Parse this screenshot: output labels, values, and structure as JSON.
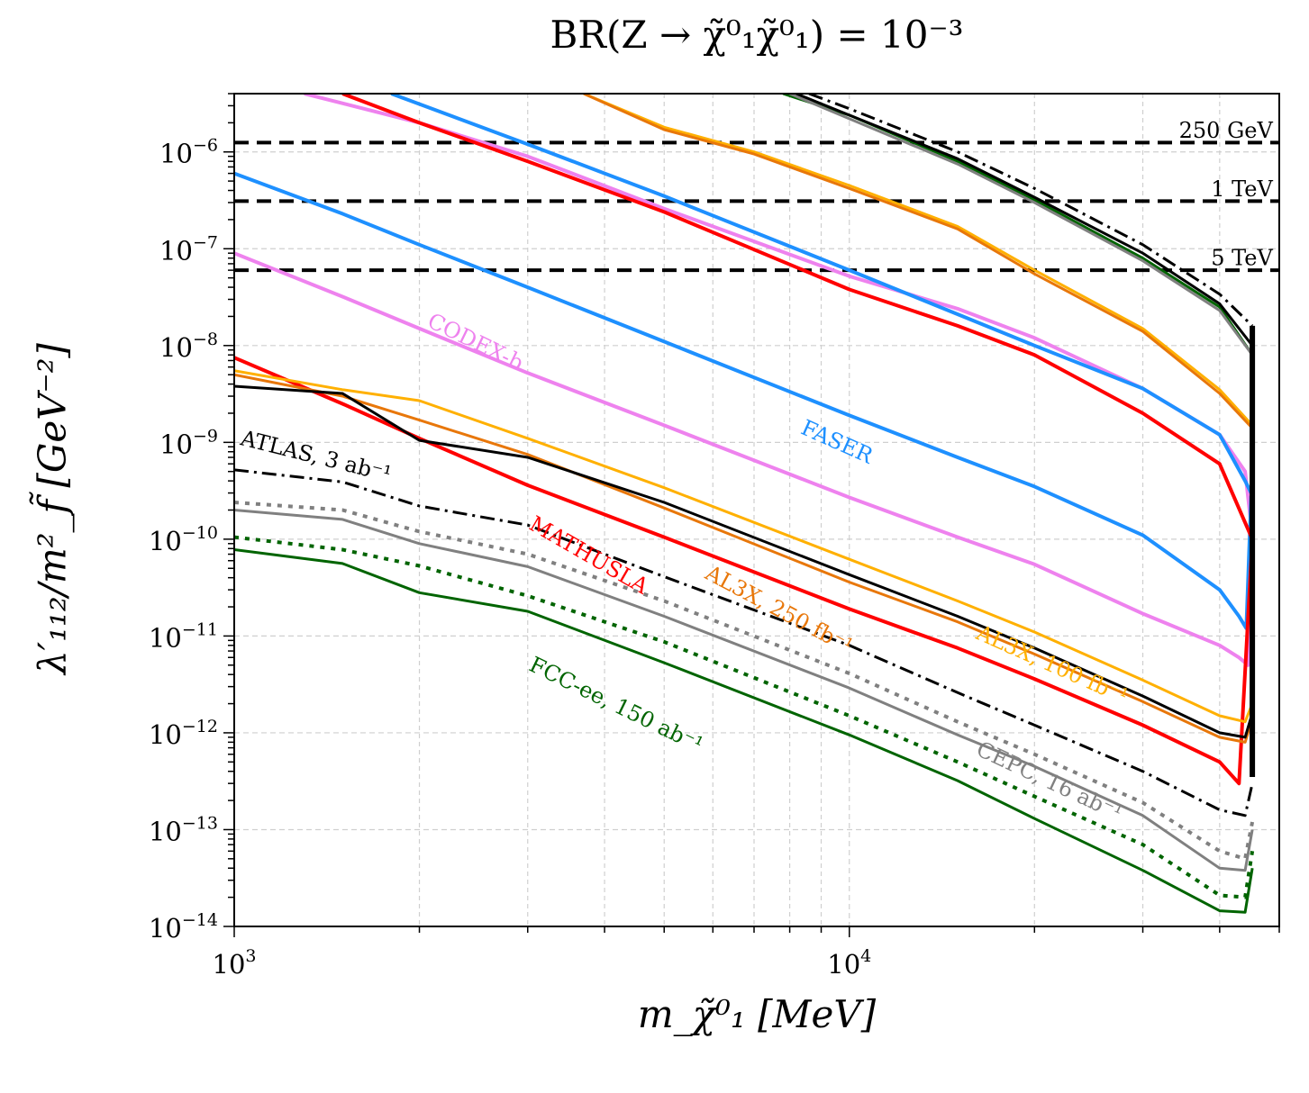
{
  "chart_data": {
    "type": "line",
    "title": "BR(Z → χ̃⁰₁χ̃⁰₁) = 10⁻³",
    "xlabel": "m_χ̃⁰₁ [MeV]",
    "ylabel": "λ′₁₁₂/m²_f̃ [GeV⁻²]",
    "xscale": "log",
    "yscale": "log",
    "xlim": [
      1000,
      50000
    ],
    "ylim": [
      1e-14,
      4e-06
    ],
    "grid": true,
    "x_ticks": [
      {
        "value": 1000,
        "base": "10",
        "exp": "3"
      },
      {
        "value": 10000,
        "base": "10",
        "exp": "4"
      }
    ],
    "y_ticks": [
      {
        "value": 1e-14,
        "base": "10",
        "exp": "−14"
      },
      {
        "value": 1e-13,
        "base": "10",
        "exp": "−13"
      },
      {
        "value": 1e-12,
        "base": "10",
        "exp": "−12"
      },
      {
        "value": 1e-11,
        "base": "10",
        "exp": "−11"
      },
      {
        "value": 1e-10,
        "base": "10",
        "exp": "−10"
      },
      {
        "value": 1e-09,
        "base": "10",
        "exp": "−9"
      },
      {
        "value": 1e-08,
        "base": "10",
        "exp": "−8"
      },
      {
        "value": 1e-07,
        "base": "10",
        "exp": "−7"
      },
      {
        "value": 1e-06,
        "base": "10",
        "exp": "−6"
      }
    ],
    "hlines": [
      {
        "label": "250 GeV",
        "y": 1.25e-06
      },
      {
        "label": "1 TeV",
        "y": 3.1e-07
      },
      {
        "label": "5 TeV",
        "y": 6e-08
      }
    ],
    "series": [
      {
        "name": "CODEX-b",
        "color": "#EE82EE",
        "style": "solid",
        "width": 4,
        "x": [
          1000,
          1500,
          2000,
          3000,
          5000,
          10000,
          15000,
          20000,
          30000,
          40000,
          43000,
          44500,
          45200
        ],
        "y": [
          [
            9e-08,
            3.2e-08,
            1.5e-08,
            5.2e-09,
            1.5e-09,
            2.7e-10,
            1.05e-10,
            5.5e-11,
            1.7e-11,
            8e-12,
            6e-12,
            5e-12,
            1e-10
          ]
        ]
      },
      {
        "name": "CODEX-b",
        "color": "#EE82EE",
        "style": "solid",
        "width": 4,
        "x": [
          1300,
          2000,
          3000,
          5000,
          10000,
          15000,
          20000,
          30000,
          40000,
          44000,
          45200
        ],
        "y": [
          [
            4e-06,
            2e-06,
            9e-07,
            2.6e-07,
            5.2e-08,
            2.4e-08,
            1.2e-08,
            3.6e-09,
            1.2e-09,
            5e-10,
            1.1e-10
          ]
        ]
      },
      {
        "name": "FASER",
        "color": "#1E90FF",
        "style": "solid",
        "width": 4,
        "x": [
          1000,
          1500,
          2000,
          3000,
          5000,
          10000,
          15000,
          20000,
          30000,
          40000,
          43000,
          44200,
          45000
        ],
        "y": [
          [
            6e-07,
            2.3e-07,
            1.1e-07,
            4e-08,
            1.1e-08,
            1.9e-09,
            7e-10,
            3.5e-10,
            1.1e-10,
            3e-11,
            1.6e-11,
            1.2e-11,
            2.8e-10
          ]
        ]
      },
      {
        "name": "FASER",
        "color": "#1E90FF",
        "style": "solid",
        "width": 4,
        "x": [
          1800,
          3000,
          5000,
          10000,
          20000,
          30000,
          40000,
          44000,
          45000
        ],
        "y": [
          [
            4e-06,
            1.2e-06,
            3.5e-07,
            6e-08,
            1e-08,
            3.6e-09,
            1.2e-09,
            4e-10,
            3e-10
          ]
        ]
      },
      {
        "name": "MATHUSLA",
        "color": "#FF0000",
        "style": "solid",
        "width": 4,
        "x": [
          1000,
          1500,
          2000,
          3000,
          5000,
          10000,
          15000,
          20000,
          30000,
          40000,
          43000,
          45200
        ],
        "y": [
          [
            7.5e-09,
            2.5e-09,
            1.1e-09,
            3.6e-10,
            1.05e-10,
            1.9e-11,
            7.5e-12,
            3.6e-12,
            1.2e-12,
            5e-13,
            3e-13,
            1e-10
          ]
        ]
      },
      {
        "name": "MATHUSLA",
        "color": "#FF0000",
        "style": "solid",
        "width": 4,
        "x": [
          1500,
          2000,
          3000,
          5000,
          10000,
          15000,
          20000,
          30000,
          40000,
          45200
        ],
        "y": [
          [
            4e-06,
            2e-06,
            8e-07,
            2.4e-07,
            3.8e-08,
            1.6e-08,
            8e-09,
            2e-09,
            6e-10,
            1e-10
          ]
        ]
      },
      {
        "name": "AL3X, 100 fb⁻¹",
        "color": "#FFB000",
        "style": "solid",
        "width": 3,
        "x": [
          1000,
          1500,
          2000,
          3000,
          5000,
          10000,
          15000,
          20000,
          30000,
          40000,
          44000,
          45200
        ],
        "y": [
          [
            5.5e-09,
            3.5e-09,
            2.7e-09,
            1.1e-09,
            3.4e-10,
            6.2e-11,
            2.3e-11,
            1.1e-11,
            3.5e-12,
            1.5e-12,
            1.3e-12,
            2e-12
          ]
        ]
      },
      {
        "name": "AL3X, 250 fb⁻¹",
        "color": "#E8770A",
        "style": "solid",
        "width": 3,
        "x": [
          1000,
          1500,
          2000,
          3000,
          5000,
          10000,
          15000,
          20000,
          30000,
          40000,
          44000,
          45200
        ],
        "y": [
          [
            5e-09,
            3e-09,
            1.7e-09,
            7.5e-10,
            2.1e-10,
            3.6e-11,
            1.4e-11,
            6.5e-12,
            2.1e-12,
            9e-13,
            8e-13,
            1.4e-12
          ]
        ]
      },
      {
        "name": "ATLAS, 3 ab⁻¹",
        "color": "#000000",
        "style": "solid",
        "width": 3,
        "x": [
          1000,
          1500,
          2000,
          3000,
          5000,
          10000,
          15000,
          20000,
          30000,
          40000,
          44000,
          45200
        ],
        "y": [
          [
            3.8e-09,
            3.2e-09,
            1.05e-09,
            7e-10,
            2.4e-10,
            4.3e-11,
            1.6e-11,
            7.5e-12,
            2.4e-12,
            1e-12,
            9e-13,
            1.6e-12
          ]
        ]
      },
      {
        "name": "ATLAS, 3 ab⁻¹",
        "color": "#000000",
        "style": "dashdot",
        "width": 3,
        "x": [
          1000,
          1500,
          2000,
          3000,
          5000,
          10000,
          15000,
          20000,
          30000,
          40000,
          44000,
          45200
        ],
        "y": [
          [
            5.2e-10,
            3.9e-10,
            2.2e-10,
            1.4e-10,
            4.1e-11,
            8e-12,
            2.6e-12,
            1.2e-12,
            4e-13,
            1.6e-13,
            1.4e-13,
            3e-13
          ]
        ]
      },
      {
        "name": "CEPC, 16 ab⁻¹",
        "color": "#808080",
        "style": "dotted",
        "width": 4,
        "x": [
          1000,
          1500,
          2000,
          3000,
          5000,
          10000,
          15000,
          20000,
          30000,
          40000,
          44000,
          45200
        ],
        "y": [
          [
            2.4e-10,
            2e-10,
            1.2e-10,
            7e-11,
            2.3e-11,
            4.1e-12,
            1.3e-12,
            6e-13,
            1.9e-13,
            6e-14,
            5e-14,
            1.2e-13
          ]
        ]
      },
      {
        "name": "CEPC, 16 ab⁻¹",
        "color": "#808080",
        "style": "solid",
        "width": 3,
        "x": [
          1000,
          1500,
          2000,
          3000,
          5000,
          10000,
          15000,
          20000,
          30000,
          40000,
          44000,
          45200
        ],
        "y": [
          [
            2e-10,
            1.6e-10,
            9e-11,
            5.2e-11,
            1.6e-11,
            2.9e-12,
            9.5e-13,
            4.5e-13,
            1.4e-13,
            4e-14,
            3.8e-14,
            1e-13
          ]
        ]
      },
      {
        "name": "FCC-ee, 150 ab⁻¹",
        "color": "#006400",
        "style": "dotted",
        "width": 4,
        "x": [
          1000,
          1500,
          2000,
          3000,
          5000,
          10000,
          15000,
          20000,
          30000,
          40000,
          44000,
          45200
        ],
        "y": [
          [
            1.05e-10,
            7.8e-11,
            5.3e-11,
            2.6e-11,
            8.7e-12,
            1.5e-12,
            5e-13,
            2.2e-13,
            7e-14,
            2.1e-14,
            2e-14,
            6e-14
          ]
        ]
      },
      {
        "name": "FCC-ee, 150 ab⁻¹",
        "color": "#006400",
        "style": "solid",
        "width": 3,
        "x": [
          1000,
          1500,
          2000,
          3000,
          5000,
          10000,
          15000,
          20000,
          30000,
          40000,
          44000,
          45200
        ],
        "y": [
          [
            7.8e-11,
            5.6e-11,
            2.8e-11,
            1.8e-11,
            5.3e-12,
            9.5e-13,
            3.2e-13,
            1.3e-13,
            3.8e-14,
            1.45e-14,
            1.4e-14,
            4e-14
          ]
        ]
      },
      {
        "name": "AL3X, 100 fb⁻¹",
        "color": "#FFB000",
        "style": "solid",
        "width": 3,
        "x": [
          3700,
          5000,
          7000,
          10000,
          15000,
          20000,
          30000,
          40000,
          45200
        ],
        "y": [
          [
            4e-06,
            1.8e-06,
            1e-06,
            4.5e-07,
            1.7e-07,
            6e-08,
            1.5e-08,
            3.5e-09,
            1.5e-09
          ]
        ]
      },
      {
        "name": "AL3X, 250 fb⁻¹",
        "color": "#E8770A",
        "style": "solid",
        "width": 3,
        "x": [
          3700,
          5000,
          7000,
          10000,
          15000,
          20000,
          30000,
          40000,
          45200
        ],
        "y": [
          [
            4e-06,
            1.7e-06,
            9.5e-07,
            4.2e-07,
            1.6e-07,
            5.5e-08,
            1.4e-08,
            3.2e-09,
            1.4e-09
          ]
        ]
      },
      {
        "name": "FCC-ee, 150 ab⁻¹",
        "color": "#006400",
        "style": "solid",
        "width": 3,
        "x": [
          7800,
          10000,
          15000,
          20000,
          30000,
          40000,
          45200
        ],
        "y": [
          [
            4e-06,
            2.4e-06,
            8e-07,
            3.2e-07,
            8e-08,
            2.5e-08,
            8e-09
          ]
        ]
      },
      {
        "name": "CEPC, 16 ab⁻¹",
        "color": "#808080",
        "style": "solid",
        "width": 3,
        "x": [
          8000,
          10000,
          15000,
          20000,
          30000,
          40000,
          45200
        ],
        "y": [
          [
            4e-06,
            2.2e-06,
            7.5e-07,
            3e-07,
            7.5e-08,
            2.3e-08,
            8e-09
          ]
        ]
      },
      {
        "name": "ATLAS, 3 ab⁻¹",
        "color": "#000000",
        "style": "solid",
        "width": 3,
        "x": [
          8200,
          10000,
          15000,
          20000,
          30000,
          40000,
          45200
        ],
        "y": [
          [
            4e-06,
            2.4e-06,
            8.5e-07,
            3.4e-07,
            9e-08,
            2.7e-08,
            1e-08
          ]
        ]
      },
      {
        "name": "ATLAS, 3 ab⁻¹",
        "color": "#000000",
        "style": "dashdot",
        "width": 3,
        "x": [
          8600,
          10000,
          15000,
          20000,
          30000,
          40000,
          45200
        ],
        "y": [
          [
            4e-06,
            2.8e-06,
            1e-06,
            4.2e-07,
            1.1e-07,
            3.4e-08,
            1.6e-08
          ]
        ]
      },
      {
        "name": "",
        "color": "#000000",
        "style": "solid",
        "width": 6,
        "x": [
          45200,
          45200
        ],
        "y": [
          [
            3.5e-13,
            1.6e-08
          ]
        ]
      }
    ],
    "annotations": [
      {
        "text": "CODEX-b",
        "color": "#EE82EE",
        "x": 2050,
        "y": 1.6e-08,
        "angle": 26
      },
      {
        "text": "FASER",
        "color": "#1E90FF",
        "x": 8300,
        "y": 1.25e-09,
        "angle": 24
      },
      {
        "text": "ATLAS, 3 ab⁻¹",
        "color": "#000000",
        "x": 1020,
        "y": 9.5e-10,
        "angle": 14
      },
      {
        "text": "MATHUSLA",
        "color": "#FF0000",
        "x": 3000,
        "y": 1.3e-10,
        "angle": 30
      },
      {
        "text": "AL3X, 250 fb⁻¹",
        "color": "#E8770A",
        "x": 5800,
        "y": 4e-11,
        "angle": 28
      },
      {
        "text": "AL3X, 100 fb⁻¹",
        "color": "#FFB000",
        "x": 16000,
        "y": 9.5e-12,
        "angle": 24
      },
      {
        "text": "FCC-ee, 150 ab⁻¹",
        "color": "#006400",
        "x": 3000,
        "y": 4.5e-12,
        "angle": 26
      },
      {
        "text": "CEPC, 16 ab⁻¹",
        "color": "#808080",
        "x": 16000,
        "y": 6e-13,
        "angle": 25
      },
      {
        "text": "250 GeV",
        "color": "#000000",
        "x": 48800,
        "y": 1.4e-06,
        "angle": 0
      },
      {
        "text": "1 TeV",
        "color": "#000000",
        "x": 48800,
        "y": 3.5e-07,
        "angle": 0
      },
      {
        "text": "5 TeV",
        "color": "#000000",
        "x": 48800,
        "y": 6.8e-08,
        "angle": 0
      }
    ]
  }
}
